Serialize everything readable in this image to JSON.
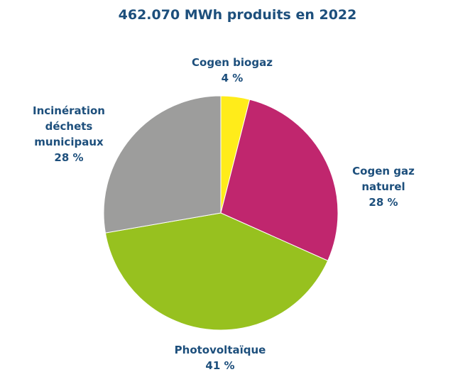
{
  "chart_data": {
    "type": "pie",
    "title": "462.070 MWh produits en 2022",
    "categories": [
      "Cogen biogaz",
      "Cogen gaz naturel",
      "Photovoltaïque",
      "Incinération déchets municipaux"
    ],
    "values": [
      4,
      28,
      41,
      28
    ],
    "value_labels": [
      "4 %",
      "28 %",
      "41 %",
      "28 %"
    ],
    "colors": [
      "#ffec1a",
      "#c0266e",
      "#97c11f",
      "#9d9d9c"
    ]
  }
}
